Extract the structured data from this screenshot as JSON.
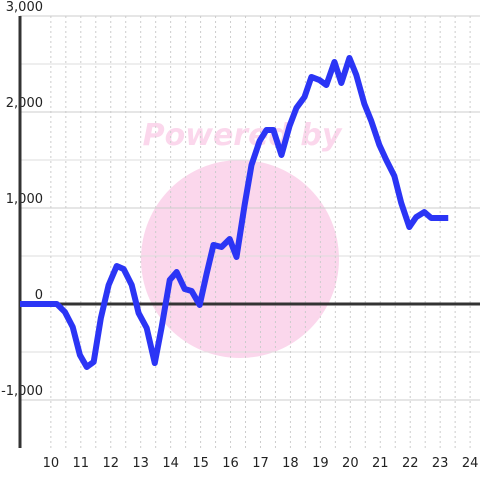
{
  "chart_data": {
    "type": "line",
    "watermark": "Powered by",
    "xlim": [
      8.97,
      24.33
    ],
    "ylim": [
      -1500,
      3000
    ],
    "xticks": [
      10,
      11,
      12,
      13,
      14,
      15,
      16,
      17,
      18,
      19,
      20,
      21,
      22,
      23,
      24
    ],
    "yticks": [
      {
        "value": -1000,
        "label": "-1,000"
      },
      0,
      {
        "value": 1000,
        "label": "1,000"
      },
      {
        "value": 2000,
        "label": "2,000"
      },
      {
        "value": 3000,
        "label": "3,000"
      }
    ],
    "grid": true,
    "x": [
      8.97,
      10.2,
      10.47,
      10.73,
      10.97,
      11.2,
      11.43,
      11.67,
      11.93,
      12.2,
      12.43,
      12.7,
      12.93,
      13.2,
      13.47,
      13.7,
      13.97,
      14.2,
      14.47,
      14.7,
      14.97,
      15.2,
      15.43,
      15.7,
      15.97,
      16.2,
      16.47,
      16.7,
      16.97,
      17.2,
      17.43,
      17.7,
      17.97,
      18.2,
      18.47,
      18.7,
      18.97,
      19.2,
      19.47,
      19.7,
      19.97,
      20.2,
      20.47,
      20.7,
      20.97,
      21.2,
      21.47,
      21.7,
      21.97,
      22.2,
      22.47,
      22.7,
      23.27
    ],
    "series": [
      {
        "color": "#2b35f5",
        "values": [
          0,
          0,
          -83,
          -240,
          -531,
          -656,
          -604,
          -146,
          198,
          396,
          365,
          198,
          -94,
          -250,
          -615,
          -240,
          250,
          333,
          156,
          135,
          -10,
          313,
          615,
          594,
          677,
          490,
          1031,
          1448,
          1698,
          1813,
          1813,
          1552,
          1854,
          2042,
          2156,
          2365,
          2333,
          2281,
          2521,
          2302,
          2563,
          2385,
          2083,
          1906,
          1656,
          1500,
          1333,
          1052,
          802,
          906,
          958,
          896,
          896
        ]
      }
    ]
  }
}
